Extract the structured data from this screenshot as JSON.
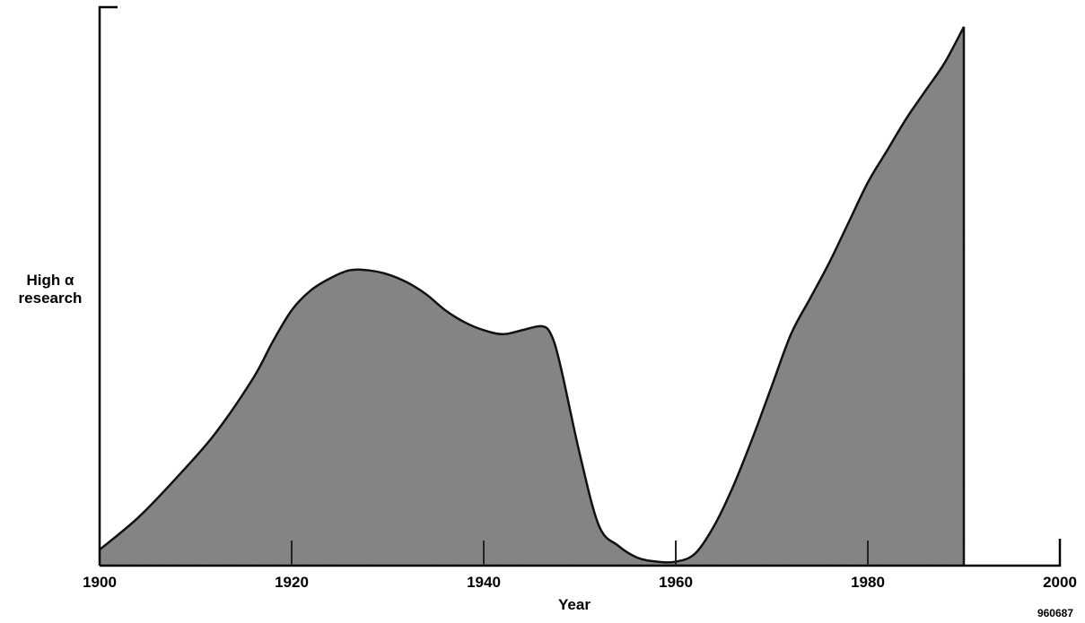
{
  "chart_data": {
    "type": "area",
    "xlabel": "Year",
    "ylabel_lines": [
      "High α",
      "research"
    ],
    "xlim": [
      1900,
      2000
    ],
    "xticks": [
      1900,
      1920,
      1940,
      1960,
      1980,
      2000
    ],
    "grid": false,
    "reference_code": "960687",
    "series": [
      {
        "x": [
          1900,
          1904,
          1908,
          1912,
          1916,
          1918,
          1920,
          1922,
          1924,
          1926,
          1928,
          1930,
          1932,
          1934,
          1936,
          1938,
          1940,
          1942,
          1944,
          1946,
          1947,
          1948,
          1950,
          1952,
          1954,
          1956,
          1958,
          1960,
          1962,
          1964,
          1966,
          1968,
          1970,
          1972,
          1974,
          1976,
          1978,
          1980,
          1982,
          1984,
          1986,
          1988,
          1990
        ],
        "y": [
          4,
          12,
          22,
          33,
          47,
          56,
          64,
          69,
          72,
          74,
          74,
          73,
          71,
          68,
          64,
          61,
          59,
          58,
          59,
          60,
          58,
          50,
          28,
          10,
          5,
          2,
          1,
          1,
          3,
          10,
          20,
          32,
          45,
          58,
          67,
          76,
          86,
          96,
          104,
          112,
          119,
          126,
          135
        ]
      }
    ],
    "colors": {
      "fill": "#8a8a8a",
      "stroke": "#111111",
      "axis": "#000000"
    }
  }
}
